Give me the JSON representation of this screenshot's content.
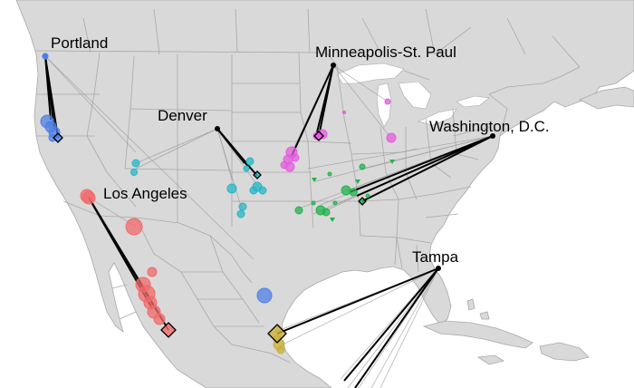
{
  "map": {
    "colors": {
      "water": "#ffffff",
      "land": "#d9d9d9",
      "border": "#a8a8a8",
      "link_dark": "#000000",
      "link_light": "#9a9a9a"
    },
    "cities": [
      {
        "id": "portland",
        "label": "Portland",
        "marker": "blue-point"
      },
      {
        "id": "minneapolis",
        "label": "Minneapolis-St. Paul",
        "marker": "black-point"
      },
      {
        "id": "denver",
        "label": "Denver",
        "marker": "black-point"
      },
      {
        "id": "washington",
        "label": "Washington, D.C.",
        "marker": "black-point"
      },
      {
        "id": "los-angeles",
        "label": "Los Angeles",
        "marker": "red-circle"
      },
      {
        "id": "tampa",
        "label": "Tampa",
        "marker": "black-point"
      }
    ],
    "clusters": [
      {
        "id": "portland-cluster",
        "color": "#4f7fe6"
      },
      {
        "id": "minneapolis-cluster",
        "color": "#e55be0"
      },
      {
        "id": "denver-cluster",
        "color": "#25b7c4"
      },
      {
        "id": "washington-cluster",
        "color": "#22b24c"
      },
      {
        "id": "los-angeles-cluster",
        "color": "#f26a6a"
      },
      {
        "id": "tampa-cluster",
        "color": "#c9b13a"
      }
    ]
  }
}
